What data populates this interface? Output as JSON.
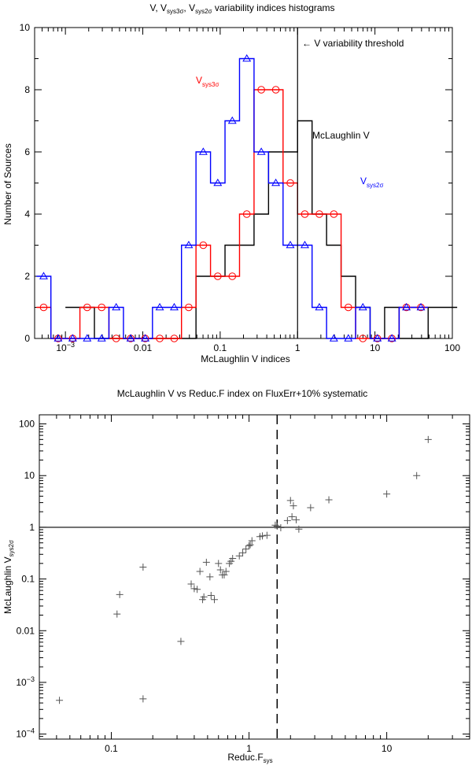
{
  "chart_data": [
    {
      "type": "step-histogram",
      "title_parts": [
        "V, V",
        "sys3σ",
        ", V",
        "sys2σ",
        " variability indices histograms"
      ],
      "xlabel": "McLaughlin V indices",
      "ylabel": "Number of Sources",
      "xscale": "log",
      "xlim": [
        0.0004,
        100
      ],
      "ylim": [
        0,
        10
      ],
      "xticks": [
        {
          "v": 0.001,
          "base": "10",
          "exp": "−3"
        },
        {
          "v": 0.01,
          "label": "0.01"
        },
        {
          "v": 0.1,
          "label": "0.1"
        },
        {
          "v": 1,
          "label": "1"
        },
        {
          "v": 10,
          "label": "10"
        },
        {
          "v": 100,
          "label": "100"
        }
      ],
      "yticks": [
        0,
        2,
        4,
        6,
        8,
        10
      ],
      "bin_width_dex": 0.1875,
      "series": [
        {
          "name": "McLaughlin V",
          "color": "#000000",
          "marker": "none",
          "bins": [
            [
              -3.0,
              1
            ],
            [
              -2.8125,
              1
            ],
            [
              -2.625,
              0
            ],
            [
              -2.4375,
              0
            ],
            [
              -2.25,
              0
            ],
            [
              -2.0625,
              0
            ],
            [
              -1.875,
              0
            ],
            [
              -1.6875,
              0
            ],
            [
              -1.5,
              0
            ],
            [
              -1.3125,
              2
            ],
            [
              -1.125,
              2
            ],
            [
              -0.9375,
              3
            ],
            [
              -0.75,
              3
            ],
            [
              -0.5625,
              4
            ],
            [
              -0.375,
              6
            ],
            [
              -0.1875,
              6
            ],
            [
              0.0,
              7
            ],
            [
              0.1875,
              4
            ],
            [
              0.375,
              3
            ],
            [
              0.5625,
              2
            ],
            [
              0.75,
              1
            ],
            [
              0.9375,
              0
            ],
            [
              1.125,
              1
            ],
            [
              1.3125,
              0
            ],
            [
              1.5,
              0
            ],
            [
              1.6875,
              1
            ],
            [
              1.875,
              1
            ]
          ]
        },
        {
          "name": "V_sys3σ",
          "color": "#ff0000",
          "marker": "circle",
          "bins": [
            [
              -3.375,
              1
            ],
            [
              -3.1875,
              0
            ],
            [
              -3.0,
              0
            ],
            [
              -2.8125,
              1
            ],
            [
              -2.625,
              1
            ],
            [
              -2.4375,
              0
            ],
            [
              -2.25,
              0
            ],
            [
              -2.0625,
              0
            ],
            [
              -1.875,
              0
            ],
            [
              -1.6875,
              0
            ],
            [
              -1.5,
              1
            ],
            [
              -1.3125,
              3
            ],
            [
              -1.125,
              2
            ],
            [
              -0.9375,
              2
            ],
            [
              -0.75,
              4
            ],
            [
              -0.5625,
              8
            ],
            [
              -0.375,
              8
            ],
            [
              -0.1875,
              5
            ],
            [
              0.0,
              4
            ],
            [
              0.1875,
              4
            ],
            [
              0.375,
              4
            ],
            [
              0.5625,
              1
            ],
            [
              0.75,
              0
            ],
            [
              0.9375,
              0
            ],
            [
              1.125,
              0
            ],
            [
              1.3125,
              1
            ],
            [
              1.5,
              1
            ]
          ]
        },
        {
          "name": "V_sys2σ",
          "color": "#0000ff",
          "marker": "triangle",
          "bins": [
            [
              -3.375,
              2
            ],
            [
              -3.1875,
              0
            ],
            [
              -3.0,
              0
            ],
            [
              -2.8125,
              0
            ],
            [
              -2.625,
              0
            ],
            [
              -2.4375,
              1
            ],
            [
              -2.25,
              0
            ],
            [
              -2.0625,
              0
            ],
            [
              -1.875,
              1
            ],
            [
              -1.6875,
              1
            ],
            [
              -1.5,
              3
            ],
            [
              -1.3125,
              6
            ],
            [
              -1.125,
              5
            ],
            [
              -0.9375,
              7
            ],
            [
              -0.75,
              9
            ],
            [
              -0.5625,
              6
            ],
            [
              -0.375,
              5
            ],
            [
              -0.1875,
              3
            ],
            [
              0.0,
              3
            ],
            [
              0.1875,
              1
            ],
            [
              0.375,
              0
            ],
            [
              0.5625,
              0
            ],
            [
              0.75,
              1
            ],
            [
              0.9375,
              0
            ],
            [
              1.125,
              0
            ],
            [
              1.3125,
              1
            ],
            [
              1.5,
              1
            ]
          ]
        }
      ],
      "threshold": {
        "x": 1,
        "label": "← V variability threshold"
      },
      "annotations": [
        {
          "id": "sys3",
          "base": "V",
          "sub": "sys3σ",
          "color": "#ff0000"
        },
        {
          "id": "mcl",
          "text": "McLaughlin V",
          "color": "#000000"
        },
        {
          "id": "sys2",
          "base": "V",
          "sub": "sys2σ",
          "color": "#0000ff"
        }
      ]
    },
    {
      "type": "scatter",
      "title": "McLaughlin V vs Reduc.F index on FluxErr+10% systematic",
      "xlabel_base": "Reduc.F",
      "xlabel_sub": "sys",
      "ylabel_base": "McLaughlin V",
      "ylabel_sub": "sys2σ",
      "xscale": "log",
      "yscale": "log",
      "xlim": [
        0.03,
        40
      ],
      "ylim": [
        8e-05,
        150
      ],
      "xticks": [
        {
          "v": 0.1,
          "label": "0.1"
        },
        {
          "v": 1,
          "label": "1"
        },
        {
          "v": 10,
          "label": "10"
        }
      ],
      "yticks": [
        {
          "v": 0.0001,
          "base": "10",
          "exp": "−4"
        },
        {
          "v": 0.001,
          "base": "10",
          "exp": "−3"
        },
        {
          "v": 0.01,
          "label": "0.01"
        },
        {
          "v": 0.1,
          "label": "0.1"
        },
        {
          "v": 1,
          "label": "1"
        },
        {
          "v": 10,
          "label": "10"
        },
        {
          "v": 100,
          "label": "100"
        }
      ],
      "hline_y": 1,
      "vline_x": 1.6,
      "marker": "plus",
      "points": [
        [
          0.042,
          0.00045
        ],
        [
          0.17,
          0.00048
        ],
        [
          0.11,
          0.021
        ],
        [
          0.115,
          0.05
        ],
        [
          0.17,
          0.17
        ],
        [
          0.32,
          0.0062
        ],
        [
          0.38,
          0.08
        ],
        [
          0.4,
          0.065
        ],
        [
          0.42,
          0.063
        ],
        [
          0.44,
          0.14
        ],
        [
          0.46,
          0.04
        ],
        [
          0.47,
          0.045
        ],
        [
          0.49,
          0.21
        ],
        [
          0.52,
          0.11
        ],
        [
          0.53,
          0.048
        ],
        [
          0.56,
          0.04
        ],
        [
          0.6,
          0.2
        ],
        [
          0.62,
          0.15
        ],
        [
          0.64,
          0.12
        ],
        [
          0.66,
          0.12
        ],
        [
          0.68,
          0.14
        ],
        [
          0.72,
          0.2
        ],
        [
          0.74,
          0.22
        ],
        [
          0.76,
          0.25
        ],
        [
          0.85,
          0.28
        ],
        [
          0.9,
          0.32
        ],
        [
          0.95,
          0.38
        ],
        [
          1.0,
          0.44
        ],
        [
          1.02,
          0.46
        ],
        [
          1.05,
          0.55
        ],
        [
          1.2,
          0.66
        ],
        [
          1.25,
          0.68
        ],
        [
          1.35,
          0.7
        ],
        [
          1.55,
          1.1
        ],
        [
          1.6,
          1.05
        ],
        [
          1.7,
          0.98
        ],
        [
          1.9,
          1.35
        ],
        [
          2.0,
          3.3
        ],
        [
          2.05,
          1.6
        ],
        [
          2.1,
          2.6
        ],
        [
          2.2,
          1.4
        ],
        [
          2.3,
          0.92
        ],
        [
          2.8,
          2.4
        ],
        [
          3.8,
          3.4
        ],
        [
          10.0,
          4.4
        ],
        [
          16.5,
          10.0
        ],
        [
          20.0,
          50.0
        ]
      ]
    }
  ]
}
